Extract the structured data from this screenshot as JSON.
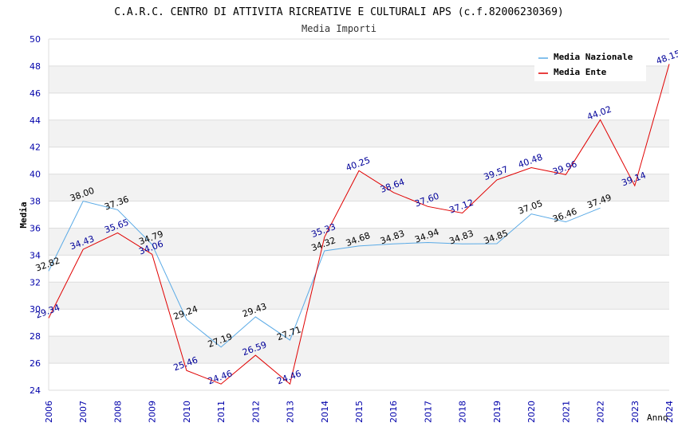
{
  "chart_data": {
    "type": "line",
    "title": "C.A.R.C. CENTRO DI ATTIVITA RICREATIVE E CULTURALI APS (c.f.82006230369)",
    "subtitle": "Media Importi",
    "xlabel": "Anno",
    "ylabel": "Media",
    "ylim": [
      24,
      50
    ],
    "y_ticks": [
      "24",
      "26",
      "28",
      "30",
      "32",
      "34",
      "36",
      "38",
      "40",
      "42",
      "44",
      "46",
      "48",
      "50"
    ],
    "categories": [
      "2006",
      "2007",
      "2008",
      "2009",
      "2010",
      "2011",
      "2012",
      "2013",
      "2014",
      "2015",
      "2016",
      "2017",
      "2018",
      "2019",
      "2020",
      "2021",
      "2022",
      "2023",
      "2024"
    ],
    "legend_position": "top-right",
    "grid": true,
    "series": [
      {
        "name": "Media Nazionale",
        "color": "#5aaae6",
        "label_color": "#000000",
        "values": [
          32.82,
          38.0,
          37.36,
          34.79,
          29.24,
          27.19,
          29.43,
          27.71,
          34.32,
          34.68,
          34.83,
          34.94,
          34.83,
          34.85,
          37.05,
          36.46,
          37.49,
          null,
          null
        ],
        "labels": [
          "32.82",
          "38.00",
          "37.36",
          "34.79",
          "29.24",
          "27.19",
          "29.43",
          "27.71",
          "34.32",
          "34.68",
          "34.83",
          "34.94",
          "34.83",
          "34.85",
          "37.05",
          "36.46",
          "37.49",
          "",
          ""
        ]
      },
      {
        "name": "Media Ente",
        "color": "#e00000",
        "label_color": "#000099",
        "values": [
          29.34,
          34.43,
          35.65,
          34.06,
          25.46,
          24.46,
          26.59,
          24.46,
          35.33,
          40.25,
          38.64,
          37.6,
          37.12,
          39.57,
          40.48,
          39.96,
          44.02,
          39.14,
          48.15
        ],
        "labels": [
          "29.34",
          "34.43",
          "35.65",
          "34.06",
          "25.46",
          "24.46",
          "26.59",
          "24.46",
          "35.33",
          "40.25",
          "38.64",
          "37.60",
          "37.12",
          "39.57",
          "40.48",
          "39.96",
          "44.02",
          "39.14",
          "48.15"
        ]
      }
    ]
  }
}
